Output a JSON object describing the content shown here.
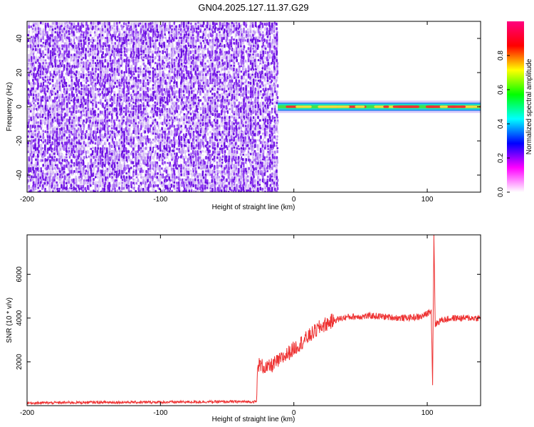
{
  "title": "GN04.2025.127.11.37.G29",
  "colors": {
    "snr_line": "#ee3333",
    "spec_noise_light": "#d9c2f5",
    "spec_noise_dark": "#7a1ee8"
  },
  "chart_data": [
    {
      "type": "heatmap",
      "xlabel": "Height of straight line (km)",
      "ylabel": "Frequency (Hz)",
      "xlim": [
        -200,
        140
      ],
      "ylim": [
        -50,
        50
      ],
      "xticks": [
        "-200",
        "-100",
        "0",
        "100"
      ],
      "yticks": [
        "-40",
        "-20",
        "0",
        "20",
        "40"
      ],
      "noise_region_x": [
        -200,
        -12
      ],
      "signal_band": {
        "x_start": -12,
        "x_end": 140,
        "freq_center": 0,
        "freq_halfwidth": 1.5
      },
      "colorbar": {
        "label": "Normalized spectral amplitude",
        "range": [
          0,
          1
        ],
        "ticks": [
          "0.0",
          "0.2",
          "0.4",
          "0.6",
          "0.8"
        ],
        "colors": [
          "#ffffff",
          "#ff00ff",
          "#0000ff",
          "#00ffff",
          "#00ff00",
          "#ffff00",
          "#ff0000",
          "#ff0080"
        ]
      }
    },
    {
      "type": "line",
      "xlabel": "Height of straight line (km)",
      "ylabel": "SNR (10 * v/v)",
      "xlim": [
        -200,
        140
      ],
      "ylim": [
        0,
        7800
      ],
      "xticks": [
        "-200",
        "-100",
        "0",
        "100"
      ],
      "yticks": [
        "2000",
        "4000",
        "6000"
      ],
      "series": [
        {
          "x": [
            -200,
            -150,
            -100,
            -50,
            -28,
            -27,
            -20,
            -10,
            0,
            10,
            20,
            30,
            40,
            60,
            80,
            95,
            100,
            103,
            104,
            105,
            106,
            110,
            120,
            140
          ],
          "y": [
            120,
            150,
            160,
            180,
            180,
            1900,
            1700,
            2100,
            2600,
            3100,
            3600,
            3900,
            4050,
            4100,
            4000,
            4050,
            4200,
            4400,
            1000,
            7800,
            3700,
            3900,
            4000,
            4000
          ]
        }
      ]
    }
  ]
}
